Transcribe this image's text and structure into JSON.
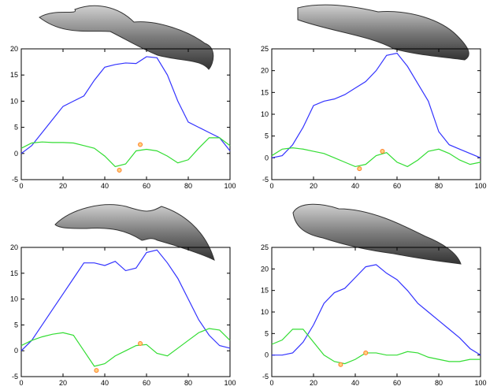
{
  "chart_data": [
    {
      "type": "line",
      "x": [
        0,
        5,
        10,
        15,
        20,
        25,
        30,
        35,
        40,
        45,
        50,
        55,
        60,
        65,
        70,
        75,
        80,
        85,
        90,
        95,
        100
      ],
      "series": [
        {
          "color": "#3333ff",
          "values": [
            0,
            1.5,
            4,
            6.5,
            9,
            10,
            11,
            14,
            16.5,
            17,
            17.3,
            17.2,
            18.5,
            18.3,
            15,
            10,
            6,
            5,
            4,
            3,
            0.5
          ]
        },
        {
          "color": "#33dd33",
          "values": [
            1,
            2,
            2.2,
            2.1,
            2.1,
            2,
            1.5,
            1,
            -0.5,
            -2.5,
            -2,
            0.5,
            0.8,
            0.5,
            -0.5,
            -1.8,
            -1.2,
            1,
            3,
            3,
            1.5
          ]
        }
      ],
      "markers": {
        "color": "#ff7f27",
        "x": [
          47,
          57
        ],
        "values": [
          -3.2,
          1.7
        ]
      },
      "xlim": [
        0,
        100
      ],
      "xticks": [
        0,
        20,
        40,
        60,
        80,
        100
      ],
      "ylim": [
        -5,
        20
      ],
      "yticks": [
        -5,
        0,
        5,
        10,
        15,
        20
      ]
    },
    {
      "type": "line",
      "x": [
        0,
        5,
        10,
        15,
        20,
        25,
        30,
        35,
        40,
        45,
        50,
        55,
        60,
        65,
        70,
        75,
        80,
        85,
        90,
        95,
        100
      ],
      "series": [
        {
          "color": "#3333ff",
          "values": [
            0,
            0.5,
            3,
            7,
            12,
            13,
            13.5,
            14.5,
            16,
            17.5,
            20,
            23.5,
            24,
            21,
            17,
            13,
            6,
            3,
            2,
            1,
            0
          ]
        },
        {
          "color": "#33dd33",
          "values": [
            0.5,
            2,
            2.3,
            2,
            1.5,
            1,
            0,
            -1,
            -2,
            -1.5,
            0.5,
            1.2,
            -1,
            -2,
            -0.5,
            1.5,
            2,
            1,
            -0.5,
            -1.5,
            -1
          ]
        }
      ],
      "markers": {
        "color": "#ff7f27",
        "x": [
          42,
          53
        ],
        "values": [
          -2.5,
          1.5
        ]
      },
      "xlim": [
        0,
        100
      ],
      "xticks": [
        0,
        20,
        40,
        60,
        80,
        100
      ],
      "ylim": [
        -5,
        25
      ],
      "yticks": [
        -5,
        0,
        5,
        10,
        15,
        20,
        25
      ]
    },
    {
      "type": "line",
      "x": [
        0,
        5,
        10,
        15,
        20,
        25,
        30,
        35,
        40,
        45,
        50,
        55,
        60,
        65,
        70,
        75,
        80,
        85,
        90,
        95,
        100
      ],
      "series": [
        {
          "color": "#3333ff",
          "values": [
            0,
            2,
            5,
            8,
            11,
            14,
            17,
            17,
            16.5,
            17.3,
            15.5,
            16,
            19,
            19.5,
            17,
            14,
            10,
            6,
            3,
            1,
            0.5
          ]
        },
        {
          "color": "#33dd33",
          "values": [
            1,
            2,
            2.7,
            3.2,
            3.5,
            3,
            0,
            -3,
            -2.5,
            -1,
            0,
            1,
            1.2,
            -0.5,
            -1,
            0.5,
            2,
            3.5,
            4.3,
            4,
            2
          ]
        }
      ],
      "markers": {
        "color": "#ff7f27",
        "x": [
          36,
          57
        ],
        "values": [
          -3.8,
          1.4
        ]
      },
      "xlim": [
        0,
        100
      ],
      "xticks": [
        0,
        20,
        40,
        60,
        80,
        100
      ],
      "ylim": [
        -5,
        20
      ],
      "yticks": [
        -5,
        0,
        5,
        10,
        15,
        20
      ]
    },
    {
      "type": "line",
      "x": [
        0,
        5,
        10,
        15,
        20,
        25,
        30,
        35,
        40,
        45,
        50,
        55,
        60,
        65,
        70,
        75,
        80,
        85,
        90,
        95,
        100
      ],
      "series": [
        {
          "color": "#3333ff",
          "values": [
            0,
            0,
            0.5,
            3,
            7,
            12,
            14.5,
            15.5,
            18,
            20.5,
            21,
            19,
            17.5,
            15,
            12,
            10,
            8,
            6,
            4,
            1.5,
            0
          ]
        },
        {
          "color": "#33dd33",
          "values": [
            2.5,
            3.5,
            6,
            6,
            3,
            0,
            -1.5,
            -2,
            -1,
            0.5,
            0.5,
            0,
            0,
            0.8,
            0.5,
            -0.5,
            -1,
            -1.5,
            -1.5,
            -1,
            -1
          ]
        }
      ],
      "markers": {
        "color": "#ff7f27",
        "x": [
          33,
          45
        ],
        "values": [
          -2.2,
          0.5
        ]
      },
      "xlim": [
        0,
        100
      ],
      "xticks": [
        0,
        20,
        40,
        60,
        80,
        100
      ],
      "ylim": [
        -5,
        25
      ],
      "yticks": [
        -5,
        0,
        5,
        10,
        15,
        20,
        25
      ]
    }
  ]
}
